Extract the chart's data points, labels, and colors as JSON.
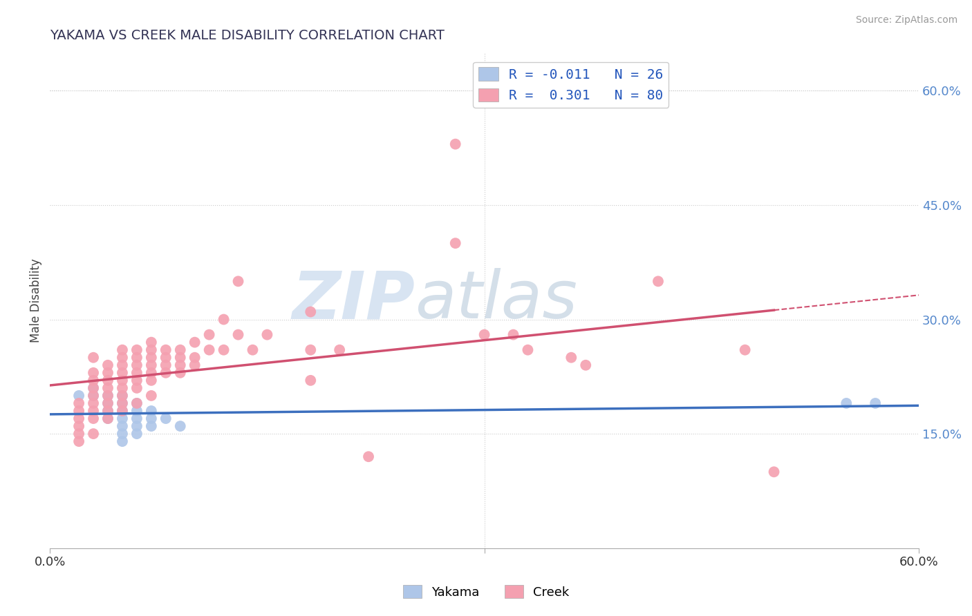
{
  "title": "YAKAMA VS CREEK MALE DISABILITY CORRELATION CHART",
  "source": "Source: ZipAtlas.com",
  "ylabel": "Male Disability",
  "right_yticks": [
    0.15,
    0.3,
    0.45,
    0.6
  ],
  "xlim": [
    0.0,
    0.6
  ],
  "ylim": [
    0.0,
    0.65
  ],
  "legend_yakama_r": "R = -0.011",
  "legend_yakama_n": "N = 26",
  "legend_creek_r": "R =  0.301",
  "legend_creek_n": "N = 80",
  "yakama_color": "#aec6e8",
  "creek_color": "#f4a0b0",
  "yakama_line_color": "#3c6fbe",
  "creek_line_color": "#d05070",
  "watermark_text": "ZIP",
  "watermark_text2": "atlas",
  "yakama_points": [
    [
      0.02,
      0.2
    ],
    [
      0.03,
      0.21
    ],
    [
      0.03,
      0.2
    ],
    [
      0.04,
      0.2
    ],
    [
      0.04,
      0.19
    ],
    [
      0.04,
      0.18
    ],
    [
      0.04,
      0.17
    ],
    [
      0.05,
      0.2
    ],
    [
      0.05,
      0.19
    ],
    [
      0.05,
      0.18
    ],
    [
      0.05,
      0.17
    ],
    [
      0.05,
      0.16
    ],
    [
      0.05,
      0.15
    ],
    [
      0.05,
      0.14
    ],
    [
      0.06,
      0.19
    ],
    [
      0.06,
      0.18
    ],
    [
      0.06,
      0.17
    ],
    [
      0.06,
      0.16
    ],
    [
      0.06,
      0.15
    ],
    [
      0.07,
      0.18
    ],
    [
      0.07,
      0.17
    ],
    [
      0.07,
      0.16
    ],
    [
      0.08,
      0.17
    ],
    [
      0.09,
      0.16
    ],
    [
      0.55,
      0.19
    ],
    [
      0.57,
      0.19
    ]
  ],
  "creek_points": [
    [
      0.02,
      0.19
    ],
    [
      0.02,
      0.18
    ],
    [
      0.02,
      0.17
    ],
    [
      0.02,
      0.16
    ],
    [
      0.02,
      0.15
    ],
    [
      0.02,
      0.14
    ],
    [
      0.03,
      0.25
    ],
    [
      0.03,
      0.23
    ],
    [
      0.03,
      0.22
    ],
    [
      0.03,
      0.21
    ],
    [
      0.03,
      0.2
    ],
    [
      0.03,
      0.19
    ],
    [
      0.03,
      0.18
    ],
    [
      0.03,
      0.17
    ],
    [
      0.03,
      0.15
    ],
    [
      0.04,
      0.24
    ],
    [
      0.04,
      0.23
    ],
    [
      0.04,
      0.22
    ],
    [
      0.04,
      0.21
    ],
    [
      0.04,
      0.2
    ],
    [
      0.04,
      0.19
    ],
    [
      0.04,
      0.18
    ],
    [
      0.04,
      0.17
    ],
    [
      0.05,
      0.26
    ],
    [
      0.05,
      0.25
    ],
    [
      0.05,
      0.24
    ],
    [
      0.05,
      0.23
    ],
    [
      0.05,
      0.22
    ],
    [
      0.05,
      0.21
    ],
    [
      0.05,
      0.2
    ],
    [
      0.05,
      0.19
    ],
    [
      0.05,
      0.18
    ],
    [
      0.06,
      0.26
    ],
    [
      0.06,
      0.25
    ],
    [
      0.06,
      0.24
    ],
    [
      0.06,
      0.23
    ],
    [
      0.06,
      0.22
    ],
    [
      0.06,
      0.21
    ],
    [
      0.06,
      0.19
    ],
    [
      0.07,
      0.27
    ],
    [
      0.07,
      0.26
    ],
    [
      0.07,
      0.25
    ],
    [
      0.07,
      0.24
    ],
    [
      0.07,
      0.23
    ],
    [
      0.07,
      0.22
    ],
    [
      0.07,
      0.2
    ],
    [
      0.08,
      0.26
    ],
    [
      0.08,
      0.25
    ],
    [
      0.08,
      0.24
    ],
    [
      0.08,
      0.23
    ],
    [
      0.09,
      0.26
    ],
    [
      0.09,
      0.25
    ],
    [
      0.09,
      0.24
    ],
    [
      0.09,
      0.23
    ],
    [
      0.1,
      0.27
    ],
    [
      0.1,
      0.25
    ],
    [
      0.1,
      0.24
    ],
    [
      0.11,
      0.28
    ],
    [
      0.11,
      0.26
    ],
    [
      0.12,
      0.3
    ],
    [
      0.12,
      0.26
    ],
    [
      0.13,
      0.35
    ],
    [
      0.13,
      0.28
    ],
    [
      0.14,
      0.26
    ],
    [
      0.15,
      0.28
    ],
    [
      0.18,
      0.31
    ],
    [
      0.18,
      0.26
    ],
    [
      0.18,
      0.22
    ],
    [
      0.2,
      0.26
    ],
    [
      0.22,
      0.12
    ],
    [
      0.28,
      0.53
    ],
    [
      0.28,
      0.4
    ],
    [
      0.3,
      0.28
    ],
    [
      0.32,
      0.28
    ],
    [
      0.33,
      0.26
    ],
    [
      0.36,
      0.25
    ],
    [
      0.37,
      0.24
    ],
    [
      0.42,
      0.35
    ],
    [
      0.48,
      0.26
    ],
    [
      0.5,
      0.1
    ]
  ]
}
